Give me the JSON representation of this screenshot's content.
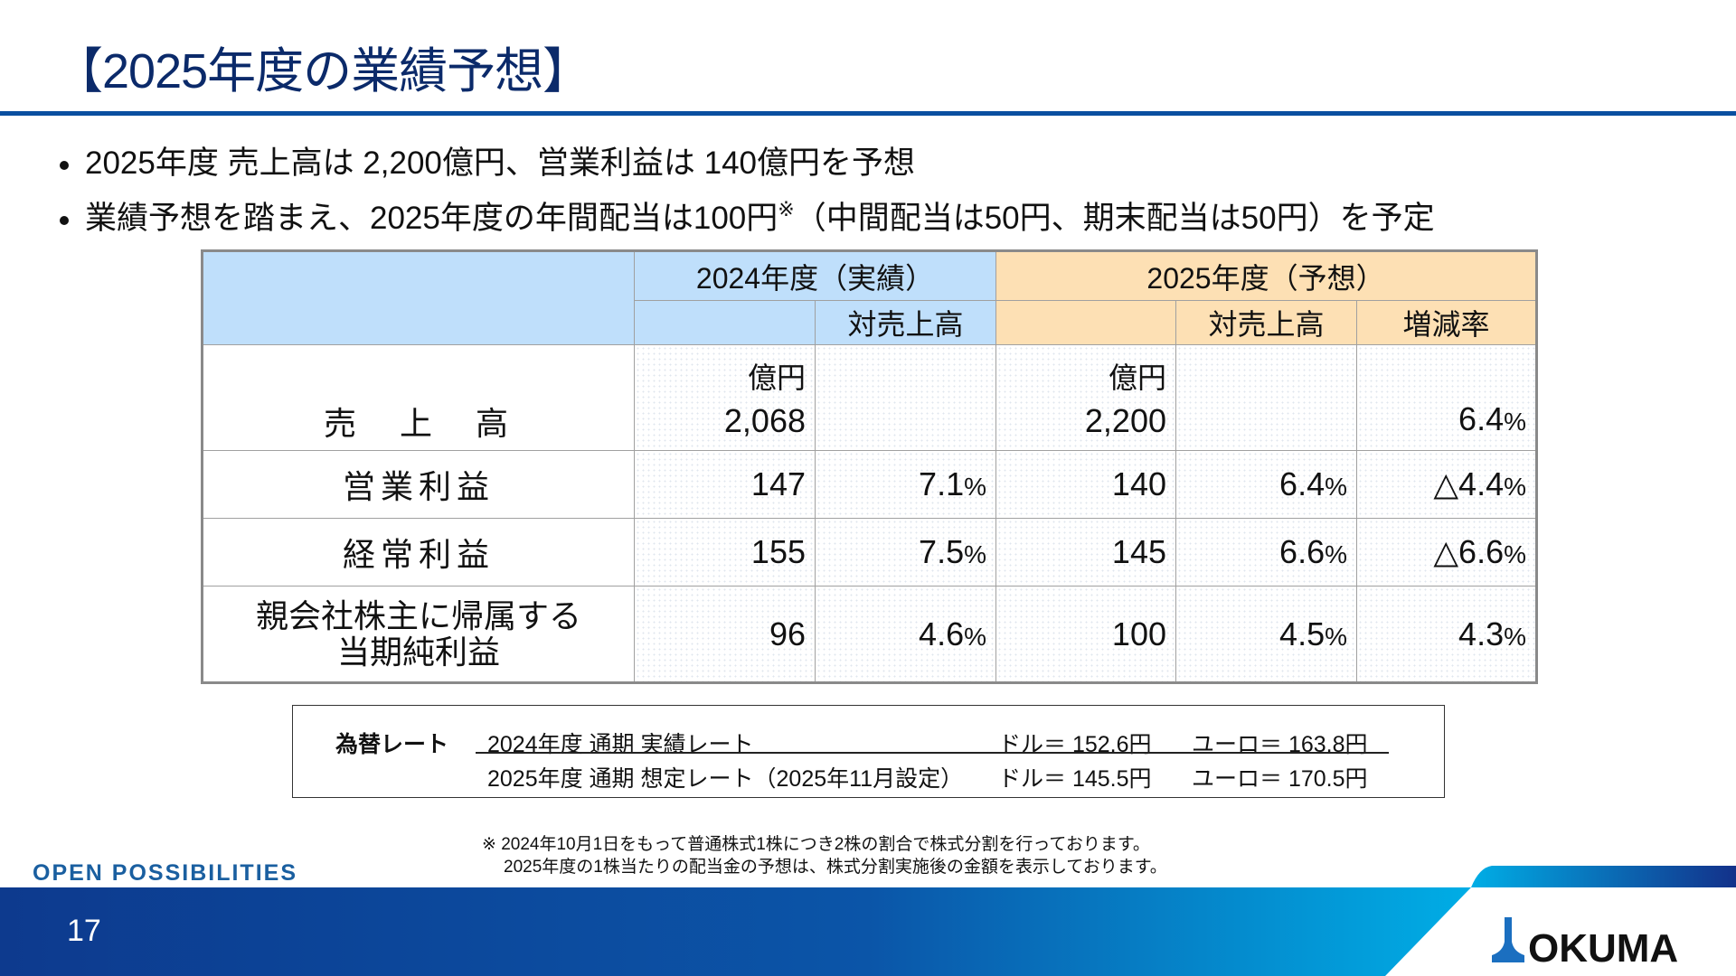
{
  "title": "【2025年度の業績予想】",
  "bullets": [
    {
      "text": "2025年度 売上高は 2,200億円、営業利益は 140億円を予想",
      "mark": ""
    },
    {
      "text": "業績予想を踏まえ、2025年度の年間配当は100円",
      "mark": "※",
      "rest": "（中間配当は50円、期末配当は50円）を予定"
    }
  ],
  "table": {
    "header": {
      "fy2024": "2024年度（実績）",
      "fy2025": "2025年度（予想）",
      "ratio": "対売上高",
      "change": "増減率"
    },
    "unit": "億円",
    "rows": [
      {
        "label": "売　上　高",
        "a24": "2,068",
        "r24": "",
        "a25": "2,200",
        "r25": "",
        "chg": "6.4"
      },
      {
        "label": "営業利益",
        "a24": "147",
        "r24": "7.1",
        "a25": "140",
        "r25": "6.4",
        "chg": "△4.4"
      },
      {
        "label": "経常利益",
        "a24": "155",
        "r24": "7.5",
        "a25": "145",
        "r25": "6.6",
        "chg": "△6.6"
      },
      {
        "label": "親会社株主に帰属する",
        "label2": "当期純利益",
        "a24": "96",
        "r24": "4.6",
        "a25": "100",
        "r25": "4.5",
        "chg": "4.3"
      }
    ],
    "pct": "%"
  },
  "fx": {
    "label": "為替レート",
    "rows": [
      {
        "name": "2024年度 通期 実績レート",
        "usd": "ドル＝ 152.6円",
        "eur": "ユーロ＝ 163.8円"
      },
      {
        "name": "2025年度 通期 想定レート（2025年11月設定）",
        "usd": "ドル＝ 145.5円",
        "eur": "ユーロ＝ 170.5円"
      }
    ]
  },
  "footnote": [
    "※ 2024年10月1日をもって普通株式1株につき2株の割合で株式分割を行っております。",
    "2025年度の1株当たりの配当金の予想は、株式分割実施後の金額を表示しております。"
  ],
  "footer": {
    "tagline": "OPEN POSSIBILITIES",
    "page": "17",
    "logo": "OKUMA"
  },
  "colors": {
    "header_2024": "#bfdffb",
    "header_2025": "#fde0b4",
    "brand_blue": "#0a4fa0",
    "accent_cyan": "#00aee6"
  }
}
